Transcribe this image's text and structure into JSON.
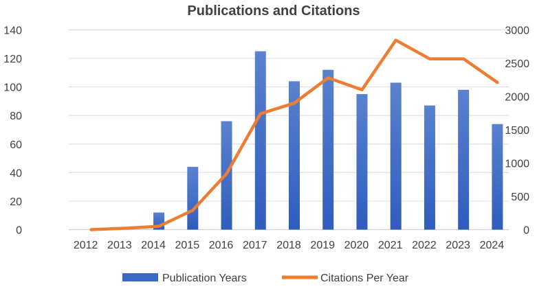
{
  "chart_data": {
    "type": "bar+line",
    "title": "Publications and Citations",
    "categories": [
      "2012",
      "2013",
      "2014",
      "2015",
      "2016",
      "2017",
      "2018",
      "2019",
      "2020",
      "2021",
      "2022",
      "2023",
      "2024"
    ],
    "series": [
      {
        "name": "Publication Years",
        "type": "bar",
        "axis": "left",
        "color": "#3a68c4",
        "values": [
          0,
          0,
          12,
          44,
          76,
          125,
          104,
          112,
          95,
          103,
          87,
          98,
          74
        ]
      },
      {
        "name": "Citations Per Year",
        "type": "line",
        "axis": "right",
        "color": "#ed7d31",
        "values": [
          0,
          20,
          50,
          290,
          840,
          1740,
          1900,
          2280,
          2100,
          2845,
          2565,
          2565,
          2210
        ]
      }
    ],
    "y_left": {
      "range": [
        0,
        140
      ],
      "ticks": [
        "0",
        "20",
        "40",
        "60",
        "80",
        "100",
        "120",
        "140"
      ]
    },
    "y_right": {
      "range": [
        0,
        3000
      ],
      "ticks": [
        "0",
        "500",
        "1000",
        "1500",
        "2000",
        "2500",
        "3000"
      ]
    },
    "grid": true,
    "legend": "bottom"
  }
}
